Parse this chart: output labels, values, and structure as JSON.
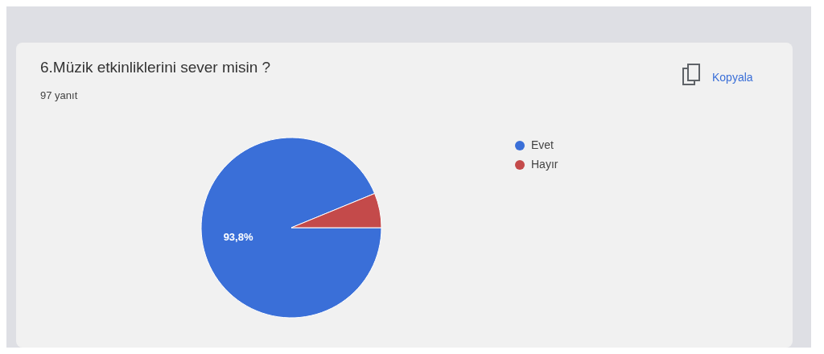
{
  "chart_data": {
    "type": "pie",
    "title": "6.Müzik etkinliklerini sever misin ?",
    "subtitle": "97 yanıt",
    "categories": [
      "Evet",
      "Hayır"
    ],
    "values": [
      93.8,
      6.2
    ],
    "colors": [
      "#3a6fd8",
      "#c44a4a"
    ],
    "value_labels": [
      "93,8%",
      null
    ],
    "legend": "right",
    "annotations": [
      "Kopyala"
    ]
  }
}
